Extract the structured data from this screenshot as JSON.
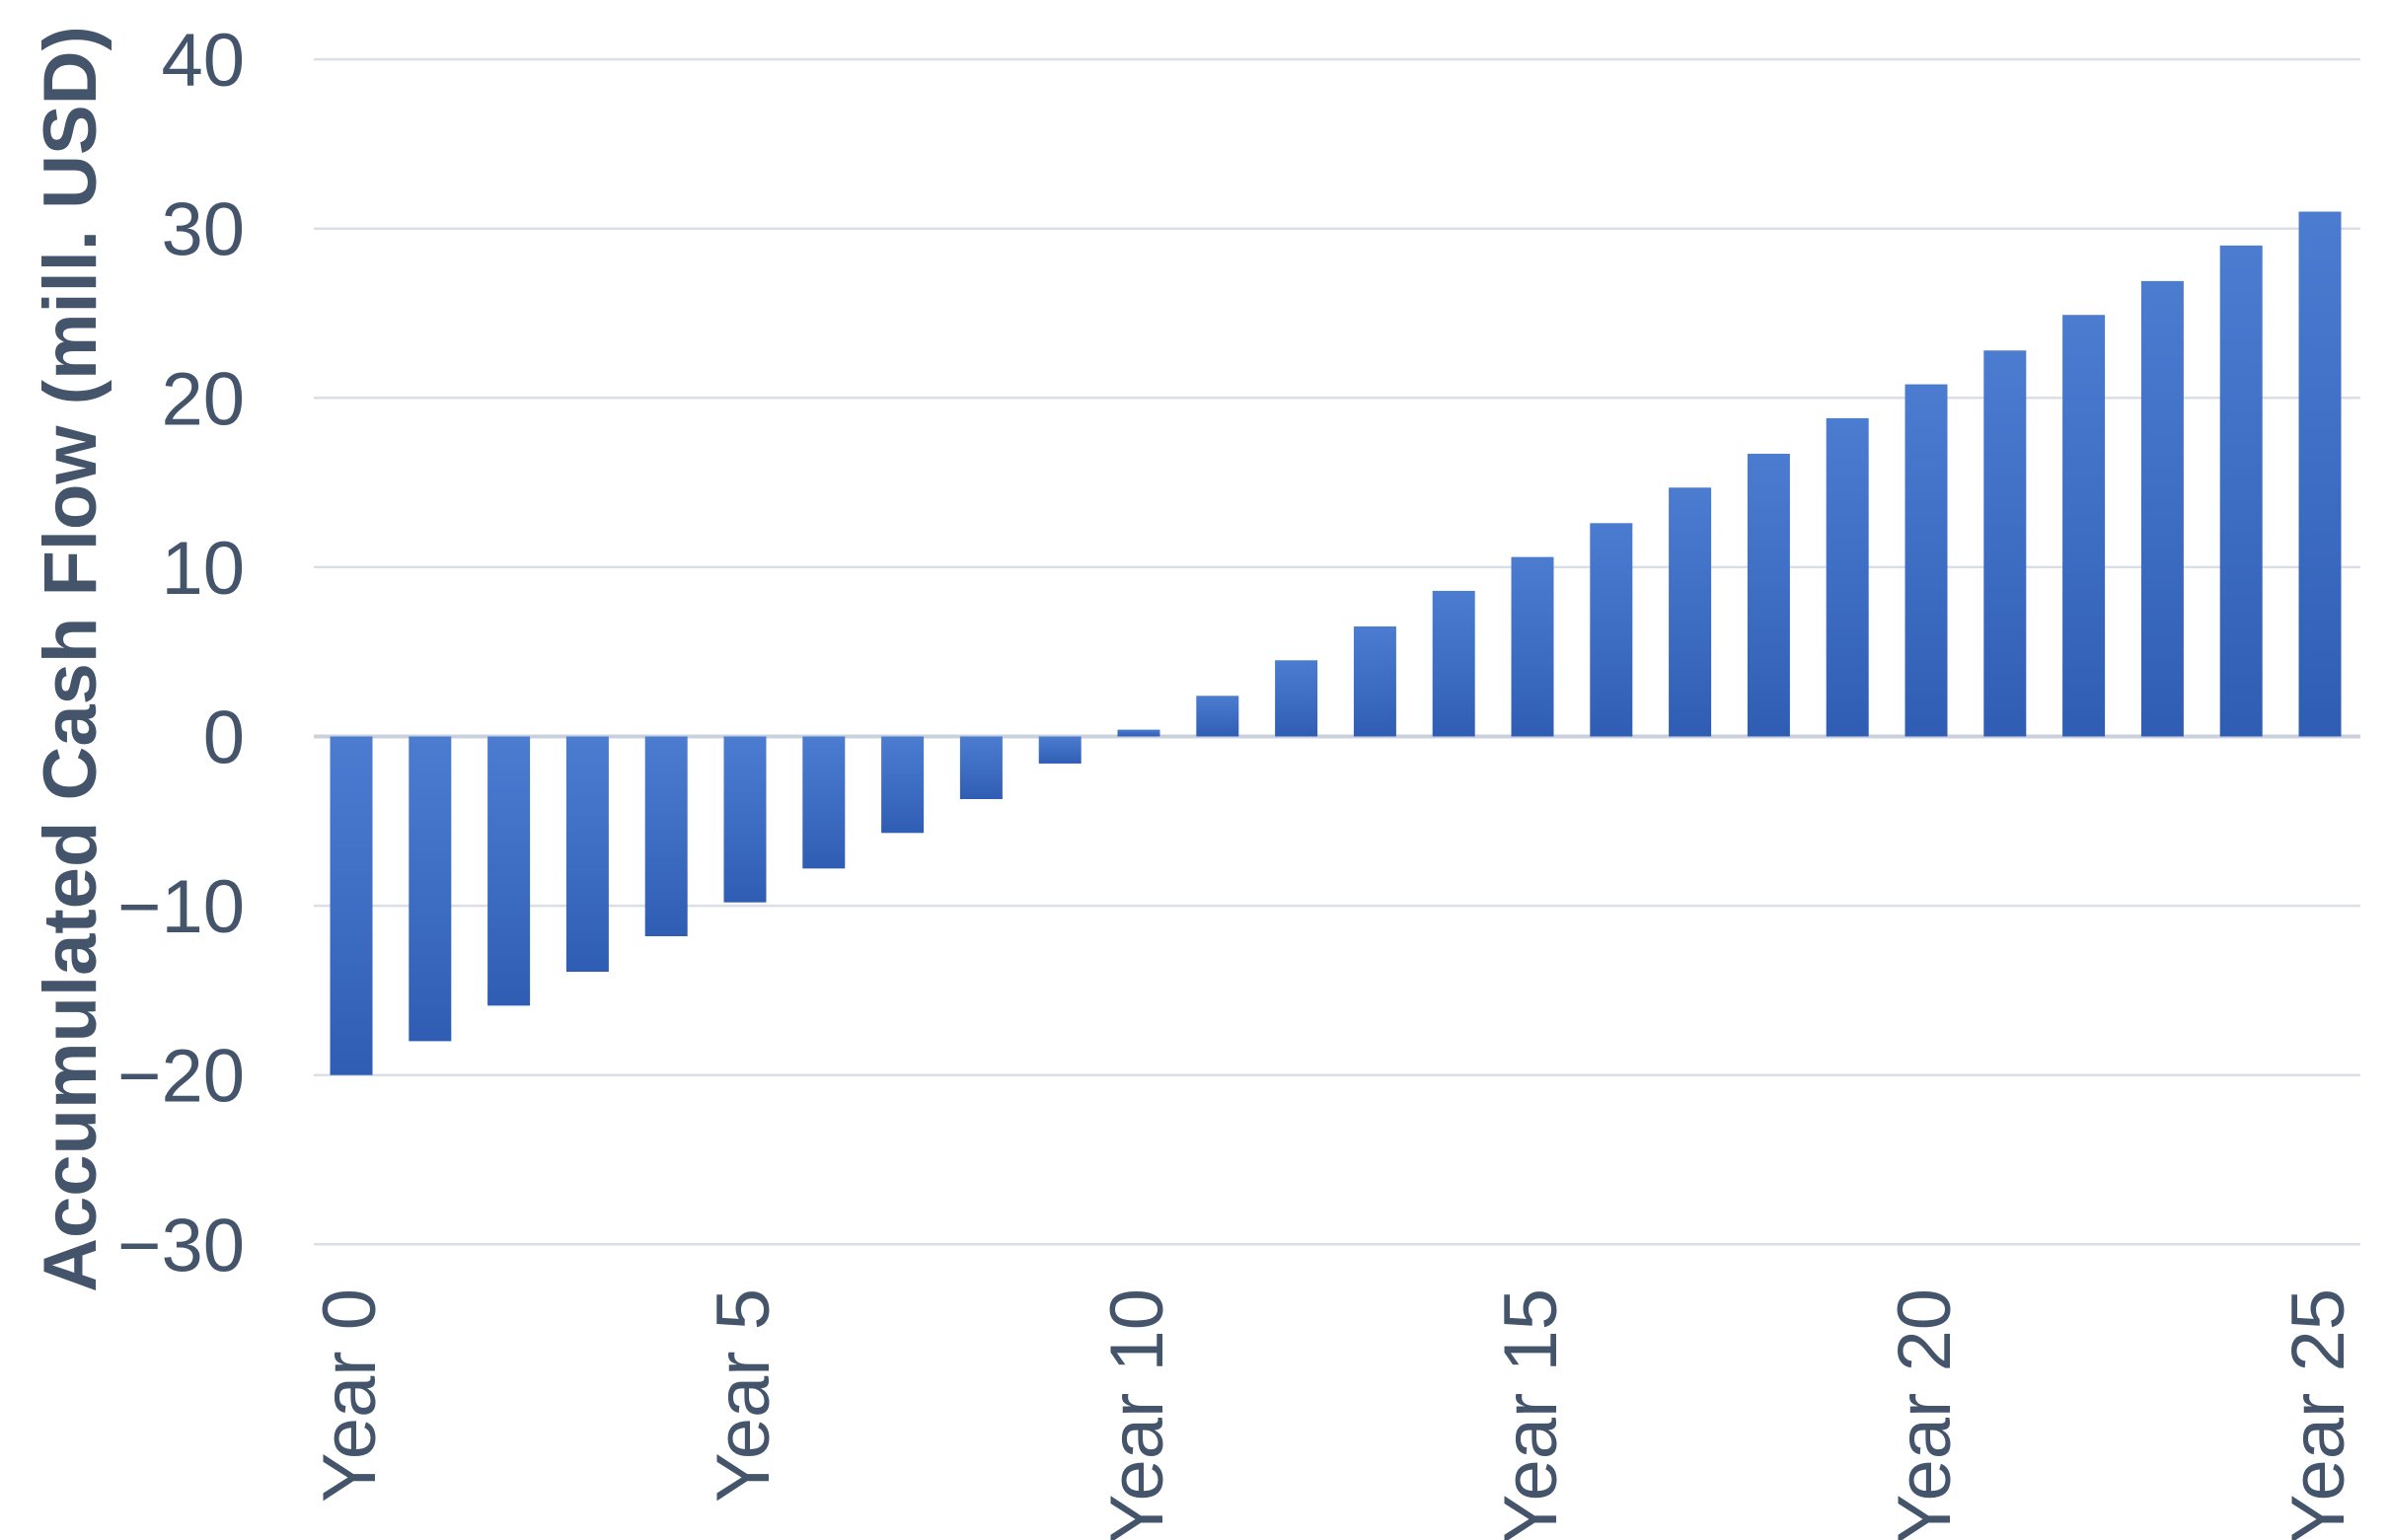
{
  "chart_data": {
    "type": "bar",
    "title": "",
    "xlabel": "",
    "ylabel": "Accumulated Cash Flow (mill. USD)",
    "categories": [
      "Year 0",
      "Year 1",
      "Year 2",
      "Year 3",
      "Year 4",
      "Year 5",
      "Year 6",
      "Year 7",
      "Year 8",
      "Year 9",
      "Year 10",
      "Year 11",
      "Year 12",
      "Year 13",
      "Year 14",
      "Year 15",
      "Year 16",
      "Year 17",
      "Year 18",
      "Year 19",
      "Year 20",
      "Year 21",
      "Year 22",
      "Year 23",
      "Year 24",
      "Year 25"
    ],
    "values": [
      -20.0,
      -18.0,
      -15.9,
      -13.9,
      -11.8,
      -9.8,
      -7.8,
      -5.7,
      -3.7,
      -1.6,
      0.4,
      2.4,
      4.5,
      6.5,
      8.6,
      10.6,
      12.6,
      14.7,
      16.7,
      18.8,
      20.8,
      22.8,
      24.9,
      26.9,
      29.0,
      31.0
    ],
    "ylim": [
      -30,
      40
    ],
    "y_ticks": [
      40,
      30,
      20,
      10,
      0,
      -10,
      -20,
      -30
    ],
    "y_tick_labels": [
      "40",
      "30",
      "20",
      "10",
      "0",
      "−10",
      "−20",
      "−30"
    ],
    "x_tick_labels": [
      {
        "year": 0,
        "label": "Year 0"
      },
      {
        "year": 5,
        "label": "Year 5"
      },
      {
        "year": 10,
        "label": "Year 10"
      },
      {
        "year": 15,
        "label": "Year 15"
      },
      {
        "year": 20,
        "label": "Year 20"
      },
      {
        "year": 25,
        "label": "Year 25"
      }
    ],
    "x_tick_interval": 5,
    "grid": "horizontal",
    "legend": "none",
    "colors": {
      "bar_base": "#4472C4",
      "bar_gradient_top": "#4C7CD0",
      "bar_gradient_mid": "#3E6EC4",
      "bar_gradient_bottom": "#2F5DB3",
      "gridline": "#DADEE7",
      "zero_axis_line": "#CBD1DC",
      "text": "#44546A",
      "background": "#FFFFFF"
    }
  }
}
